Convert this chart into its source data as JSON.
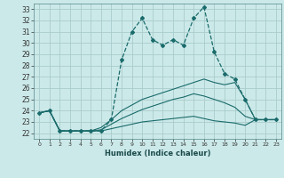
{
  "title": "",
  "xlabel": "Humidex (Indice chaleur)",
  "bg_color": "#cce9e9",
  "grid_color": "#aacccc",
  "line_color": "#1a6b6b",
  "xlim": [
    -0.5,
    23.5
  ],
  "ylim": [
    21.5,
    33.5
  ],
  "xticks": [
    0,
    1,
    2,
    3,
    4,
    5,
    6,
    7,
    8,
    9,
    10,
    11,
    12,
    13,
    14,
    15,
    16,
    17,
    18,
    19,
    20,
    21,
    22,
    23
  ],
  "yticks": [
    22,
    23,
    24,
    25,
    26,
    27,
    28,
    29,
    30,
    31,
    32,
    33
  ],
  "series1_x": [
    0,
    1,
    2,
    3,
    4,
    5,
    6,
    7,
    8,
    9,
    10,
    11,
    12,
    13,
    14,
    15,
    16,
    17,
    18,
    19,
    20,
    21,
    22,
    23
  ],
  "series1_y": [
    23.8,
    24.0,
    22.2,
    22.2,
    22.2,
    22.2,
    22.2,
    23.2,
    28.5,
    31.0,
    32.2,
    30.3,
    29.8,
    30.3,
    29.8,
    32.2,
    33.2,
    29.2,
    27.3,
    26.8,
    25.0,
    23.2,
    23.2,
    23.2
  ],
  "series2_x": [
    0,
    1,
    2,
    3,
    4,
    5,
    6,
    7,
    8,
    9,
    10,
    11,
    12,
    13,
    14,
    15,
    16,
    17,
    18,
    19,
    20,
    21,
    22,
    23
  ],
  "series2_y": [
    23.8,
    24.0,
    22.2,
    22.2,
    22.2,
    22.2,
    22.5,
    23.2,
    24.0,
    24.5,
    25.0,
    25.3,
    25.6,
    25.9,
    26.2,
    26.5,
    26.8,
    26.5,
    26.3,
    26.5,
    25.0,
    23.2,
    23.2,
    23.2
  ],
  "series3_x": [
    0,
    1,
    2,
    3,
    4,
    5,
    6,
    7,
    8,
    9,
    10,
    11,
    12,
    13,
    14,
    15,
    16,
    17,
    18,
    19,
    20,
    21,
    22,
    23
  ],
  "series3_y": [
    23.8,
    24.0,
    22.2,
    22.2,
    22.2,
    22.2,
    22.3,
    22.8,
    23.3,
    23.7,
    24.1,
    24.4,
    24.7,
    25.0,
    25.2,
    25.5,
    25.3,
    25.0,
    24.7,
    24.3,
    23.5,
    23.2,
    23.2,
    23.2
  ],
  "series4_x": [
    0,
    1,
    2,
    3,
    4,
    5,
    6,
    7,
    8,
    9,
    10,
    11,
    12,
    13,
    14,
    15,
    16,
    17,
    18,
    19,
    20,
    21,
    22,
    23
  ],
  "series4_y": [
    23.8,
    24.0,
    22.2,
    22.2,
    22.2,
    22.2,
    22.2,
    22.4,
    22.6,
    22.8,
    23.0,
    23.1,
    23.2,
    23.3,
    23.4,
    23.5,
    23.3,
    23.1,
    23.0,
    22.9,
    22.7,
    23.2,
    23.2,
    23.2
  ]
}
